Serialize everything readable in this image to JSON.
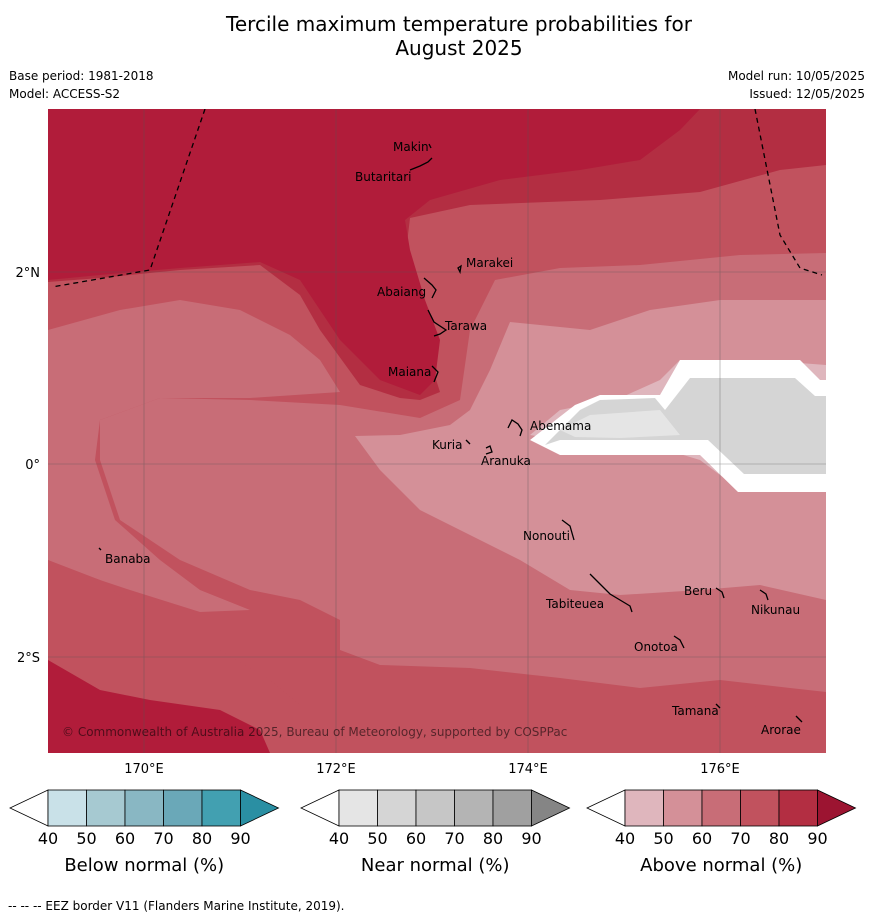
{
  "title_line1": "Tercile maximum temperature probabilities for",
  "title_line2": "August 2025",
  "meta": {
    "base_period": "Base period: 1981-2018",
    "model": "Model: ACCESS-S2",
    "model_run": "Model run: 10/05/2025",
    "issued": "Issued: 12/05/2025"
  },
  "map": {
    "lat_labels": [
      "2°N",
      "0°",
      "2°S"
    ],
    "lon_labels": [
      "170°E",
      "172°E",
      "174°E",
      "176°E"
    ],
    "copyright": "© Commonwealth of Australia 2025, Bureau of Meteorology, supported by COSPPac",
    "islands": [
      "Makin",
      "Butaritari",
      "Marakei",
      "Abaiang",
      "Tarawa",
      "Maiana",
      "Abemama",
      "Kuria",
      "Aranuka",
      "Nonouti",
      "Banaba",
      "Tabiteuea",
      "Beru",
      "Nikunau",
      "Onotoa",
      "Tamana",
      "Arorae"
    ]
  },
  "legends": [
    {
      "label": "Below normal (%)",
      "ticks": [
        "40",
        "50",
        "60",
        "70",
        "80",
        "90"
      ],
      "colors": [
        "#ffffff",
        "#c9e1e8",
        "#a6c9d1",
        "#89b7c3",
        "#6aa8b8",
        "#42a0b1",
        "#2a8fa3"
      ]
    },
    {
      "label": "Near normal (%)",
      "ticks": [
        "40",
        "50",
        "60",
        "70",
        "80",
        "90"
      ],
      "colors": [
        "#ffffff",
        "#e5e5e5",
        "#d5d5d5",
        "#c6c6c6",
        "#b4b4b4",
        "#a0a0a0",
        "#858585"
      ]
    },
    {
      "label": "Above normal (%)",
      "ticks": [
        "40",
        "50",
        "60",
        "70",
        "80",
        "90"
      ],
      "colors": [
        "#ffffff",
        "#dfb6bd",
        "#d49098",
        "#c86d77",
        "#c1525e",
        "#b32e42",
        "#9c1431"
      ]
    }
  ],
  "footnote": "-- -- -- EEZ border V11 (Flanders Marine Institute, 2019)."
}
